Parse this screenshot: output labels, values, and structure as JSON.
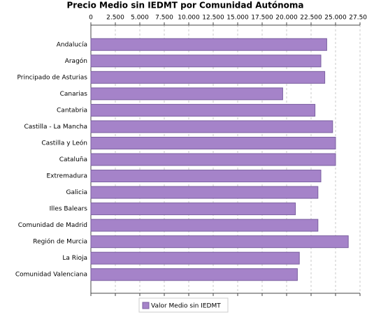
{
  "chart_data": {
    "type": "bar",
    "orientation": "horizontal",
    "title": "Precio Medio sin IEDMT por Comunidad Autónoma",
    "categories": [
      "Andalucía",
      "Aragón",
      "Principado de Asturias",
      "Canarias",
      "Cantabria",
      "Castilla - La Mancha",
      "Castilla y León",
      "Cataluña",
      "Extremadura",
      "Galicia",
      "Illes Balears",
      "Comunidad de Madrid",
      "Región de Murcia",
      "La Rioja",
      "Comunidad Valenciana"
    ],
    "series": [
      {
        "name": "Valor Medio sin IEDMT",
        "color": "#a583c9",
        "values": [
          24100,
          23500,
          23900,
          19600,
          22900,
          24700,
          25000,
          25000,
          23500,
          23200,
          20900,
          23200,
          26300,
          21300,
          21100
        ]
      }
    ],
    "xlim": [
      0,
      27500
    ],
    "xticks": [
      0,
      {
        "value": 2500,
        "label": "2.500"
      },
      {
        "value": 5000,
        "label": "5.000"
      },
      {
        "value": 7500,
        "label": "7.500"
      },
      {
        "value": 10000,
        "label": "10.000"
      },
      {
        "value": 12500,
        "label": "12.500"
      },
      {
        "value": 15000,
        "label": "15.000"
      },
      {
        "value": 17500,
        "label": "17.500"
      },
      {
        "value": 20000,
        "label": "20.000"
      },
      {
        "value": 22500,
        "label": "22.500"
      },
      {
        "value": 25000,
        "label": "25.000"
      },
      {
        "value": 27500,
        "label": "27.500"
      }
    ],
    "grid": true,
    "legend": "bottom"
  }
}
